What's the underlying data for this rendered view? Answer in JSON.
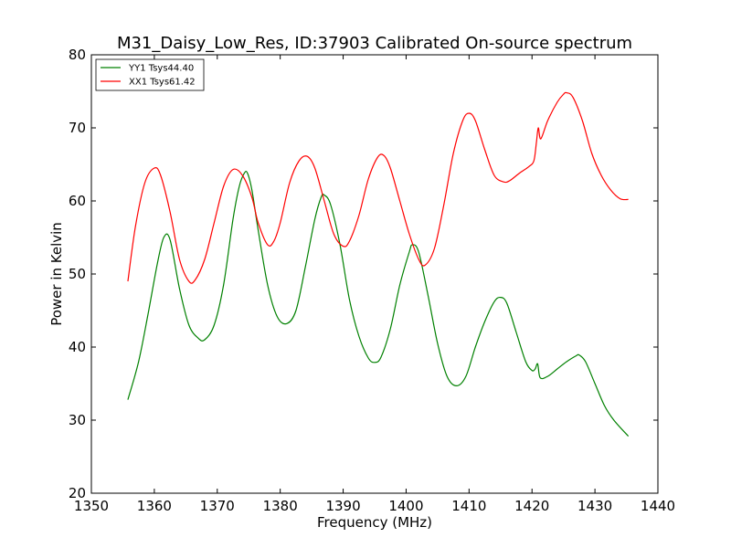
{
  "chart_data": {
    "type": "line",
    "title": "M31_Daisy_Low_Res, ID:37903 Calibrated On-source spectrum",
    "xlabel": "Frequency (MHz)",
    "ylabel": "Power in Kelvin",
    "xlim": [
      1350,
      1440
    ],
    "ylim": [
      20,
      80
    ],
    "xticks": [
      1350,
      1360,
      1370,
      1380,
      1390,
      1400,
      1410,
      1420,
      1430,
      1440
    ],
    "yticks": [
      20,
      30,
      40,
      50,
      60,
      70,
      80
    ],
    "grid": false,
    "legend_position": "top-left",
    "series": [
      {
        "name": "YY1 Tsys44.40",
        "color": "#008000",
        "x": [
          1355.8,
          1357.5,
          1359.0,
          1360.5,
          1361.5,
          1362.5,
          1364.0,
          1365.5,
          1367.0,
          1368.0,
          1369.5,
          1371.0,
          1372.5,
          1373.5,
          1374.3,
          1374.8,
          1375.5,
          1376.5,
          1378.0,
          1379.5,
          1381.0,
          1382.5,
          1384.0,
          1385.5,
          1386.5,
          1387.0,
          1388.0,
          1389.5,
          1391.0,
          1392.5,
          1394.0,
          1395.0,
          1396.0,
          1397.5,
          1399.0,
          1400.5,
          1401.0,
          1402.0,
          1403.5,
          1405.0,
          1406.5,
          1408.0,
          1409.5,
          1411.0,
          1412.5,
          1414.0,
          1415.0,
          1416.0,
          1417.5,
          1419.0,
          1420.0,
          1420.5,
          1420.9,
          1421.3,
          1422.5,
          1424.0,
          1425.5,
          1427.0,
          1427.5,
          1428.5,
          1430.0,
          1431.5,
          1433.0,
          1435.3
        ],
        "y": [
          32.8,
          38.0,
          44.5,
          51.5,
          55.0,
          54.7,
          48.0,
          43.0,
          41.2,
          41.0,
          43.0,
          48.5,
          57.5,
          62.0,
          63.8,
          63.8,
          61.5,
          56.0,
          48.5,
          44.2,
          43.2,
          45.0,
          51.0,
          57.5,
          60.5,
          60.8,
          59.5,
          54.0,
          46.5,
          41.5,
          38.5,
          37.9,
          38.6,
          42.5,
          48.5,
          53.0,
          54.0,
          53.0,
          47.0,
          40.5,
          36.0,
          34.7,
          36.0,
          40.0,
          43.5,
          46.2,
          46.8,
          46.0,
          42.0,
          38.0,
          36.8,
          37.0,
          37.7,
          35.8,
          36.0,
          37.0,
          38.0,
          38.8,
          38.9,
          38.0,
          35.0,
          32.0,
          30.0,
          27.8
        ]
      },
      {
        "name": "XX1 Tsys61.42",
        "color": "#ff0000",
        "x": [
          1355.8,
          1357.0,
          1358.5,
          1360.0,
          1361.0,
          1362.5,
          1364.0,
          1365.5,
          1366.5,
          1368.0,
          1369.5,
          1371.0,
          1372.5,
          1374.0,
          1375.5,
          1376.5,
          1378.0,
          1379.0,
          1380.0,
          1381.5,
          1383.0,
          1384.3,
          1385.5,
          1387.0,
          1388.5,
          1390.0,
          1391.0,
          1392.5,
          1394.0,
          1395.5,
          1396.5,
          1397.5,
          1399.0,
          1400.5,
          1402.0,
          1403.0,
          1404.5,
          1406.0,
          1407.5,
          1409.0,
          1410.0,
          1411.0,
          1412.5,
          1414.0,
          1415.5,
          1416.5,
          1418.0,
          1419.5,
          1420.3,
          1420.7,
          1421.0,
          1421.4,
          1422.5,
          1424.0,
          1425.0,
          1425.5,
          1426.5,
          1428.0,
          1429.5,
          1431.0,
          1432.5,
          1434.0,
          1435.3
        ],
        "y": [
          49.0,
          56.5,
          62.5,
          64.5,
          63.5,
          58.5,
          52.0,
          49.0,
          49.2,
          52.0,
          57.0,
          62.0,
          64.3,
          63.5,
          60.5,
          57.0,
          54.0,
          54.5,
          57.0,
          62.5,
          65.5,
          66.1,
          64.5,
          60.0,
          55.5,
          53.8,
          54.5,
          58.0,
          63.0,
          66.0,
          66.2,
          64.5,
          60.0,
          55.5,
          52.0,
          51.2,
          53.5,
          59.5,
          66.5,
          71.0,
          72.0,
          71.0,
          67.0,
          63.5,
          62.6,
          62.8,
          63.8,
          64.7,
          65.5,
          68.0,
          70.0,
          68.5,
          71.0,
          73.5,
          74.6,
          74.8,
          74.2,
          71.0,
          66.5,
          63.5,
          61.5,
          60.3,
          60.2
        ]
      }
    ]
  }
}
